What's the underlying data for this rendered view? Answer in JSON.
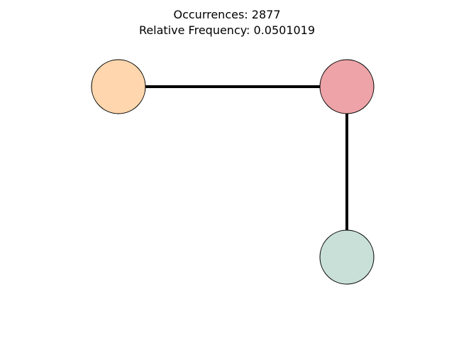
{
  "title": {
    "line1": "Occurrences: 2877",
    "line2": "Relative Frequency: 0.0501019"
  },
  "graph": {
    "nodes": [
      {
        "id": "node-a",
        "color": "#ffd6ad"
      },
      {
        "id": "node-b",
        "color": "#eda3a7"
      },
      {
        "id": "node-c",
        "color": "#c9e0d8"
      }
    ],
    "edges": [
      {
        "id": "edge-a-b",
        "source": "node-a",
        "target": "node-b"
      },
      {
        "id": "edge-b-c",
        "source": "node-b",
        "target": "node-c"
      }
    ],
    "edge_color": "#000000",
    "node_outline_color": "#000000"
  }
}
